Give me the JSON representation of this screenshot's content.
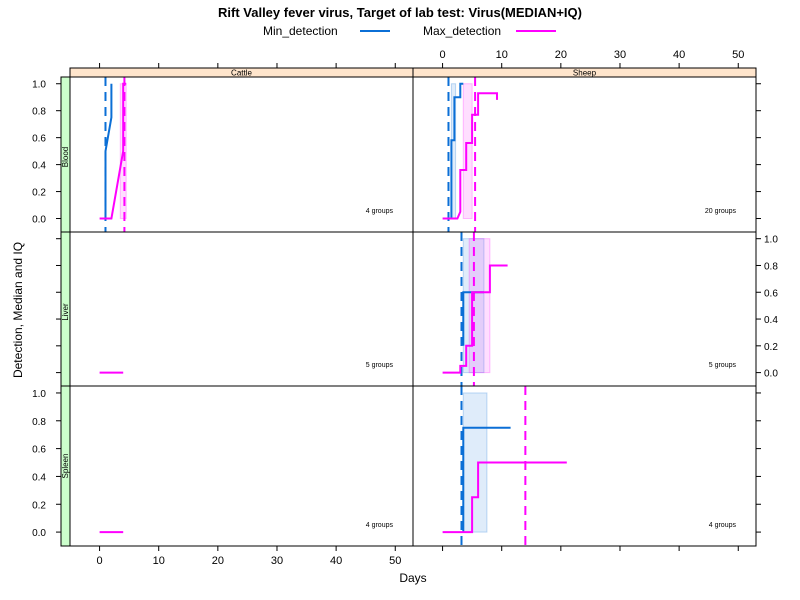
{
  "chart_data": {
    "type": "line",
    "title": "Rift Valley fever virus, Target of lab test: Virus(MEDIAN+IQ)",
    "xlabel": "Days",
    "ylabel": "Detection, Median and IQ",
    "xlim": [
      -5,
      53
    ],
    "ylim": [
      -0.1,
      1.05
    ],
    "x_ticks": [
      0,
      10,
      20,
      30,
      40,
      50
    ],
    "y_ticks": [
      0.0,
      0.2,
      0.4,
      0.6,
      0.8,
      1.0
    ],
    "y_tick_labels": [
      "0.0",
      "0.2",
      "0.4",
      "0.6",
      "0.8",
      "1.0"
    ],
    "legend_position": "top",
    "legend": [
      {
        "name": "Min_detection",
        "color": "#0b6fd6"
      },
      {
        "name": "Max_detection",
        "color": "#ff00ff"
      }
    ],
    "strip_colors": {
      "top": "#ffe5cc",
      "left": "#ccffcc"
    },
    "columns": [
      "Cattle",
      "Sheep"
    ],
    "rows": [
      "Blood",
      "Liver",
      "Spleen"
    ],
    "panels": [
      {
        "row": "Blood",
        "col": "Cattle",
        "groups_label": "4 groups",
        "min_series": {
          "x": [
            1,
            1,
            2,
            2,
            2,
            2
          ],
          "y": [
            0,
            0.5,
            0.75,
            0.75,
            1,
            1
          ]
        },
        "min_iq": null,
        "min_median_line": 1,
        "max_series": {
          "x": [
            0,
            2,
            3,
            3,
            4,
            4,
            4.5
          ],
          "y": [
            0,
            0,
            0.25,
            0.25,
            0.5,
            1,
            1
          ]
        },
        "max_iq": [
          3.5,
          4.5
        ],
        "max_median_line": 4.2
      },
      {
        "row": "Blood",
        "col": "Sheep",
        "groups_label": "20 groups",
        "min_series": {
          "x": [
            1.5,
            1.5,
            2,
            2,
            3,
            3,
            3.5
          ],
          "y": [
            0,
            0.58,
            0.58,
            0.9,
            0.9,
            1,
            1
          ]
        },
        "min_iq": [
          1.5,
          2.2
        ],
        "min_median_line": 1,
        "max_series": {
          "x": [
            0,
            2.5,
            3,
            3,
            4,
            4,
            5,
            5,
            6,
            6,
            7,
            9.2,
            9.2
          ],
          "y": [
            0,
            0,
            0.05,
            0.36,
            0.36,
            0.56,
            0.56,
            0.77,
            0.77,
            0.93,
            0.93,
            0.93,
            0.88
          ]
        },
        "max_iq": [
          3.5,
          5
        ],
        "max_median_line": 5.5
      },
      {
        "row": "Liver",
        "col": "Cattle",
        "groups_label": "5 groups",
        "min_series": null,
        "min_iq": null,
        "min_median_line": null,
        "max_series": {
          "x": [
            0,
            4
          ],
          "y": [
            0,
            0
          ]
        },
        "max_iq": null,
        "max_median_line": null
      },
      {
        "row": "Liver",
        "col": "Sheep",
        "groups_label": "5 groups",
        "min_series": {
          "x": [
            3.5,
            3.5,
            5,
            5,
            7
          ],
          "y": [
            0.2,
            0.6,
            0.6,
            0.6,
            0.6
          ]
        },
        "min_iq": [
          3.5,
          7
        ],
        "min_median_line": 3.2,
        "max_series": {
          "x": [
            0,
            3,
            3,
            4,
            4,
            5,
            5,
            8,
            8,
            11
          ],
          "y": [
            0,
            0,
            0.05,
            0.05,
            0.2,
            0.2,
            0.6,
            0.6,
            0.8,
            0.8
          ]
        },
        "max_iq": [
          4.5,
          8
        ],
        "max_median_line": 5.3
      },
      {
        "row": "Spleen",
        "col": "Cattle",
        "groups_label": "4 groups",
        "min_series": null,
        "min_iq": null,
        "min_median_line": null,
        "max_series": {
          "x": [
            0,
            4
          ],
          "y": [
            0,
            0
          ]
        },
        "max_iq": null,
        "max_median_line": null
      },
      {
        "row": "Spleen",
        "col": "Sheep",
        "groups_label": "4 groups",
        "min_series": {
          "x": [
            3.5,
            3.5,
            11.5
          ],
          "y": [
            0,
            0.75,
            0.75
          ]
        },
        "min_iq": [
          3.5,
          7.5
        ],
        "min_median_line": 3.2,
        "max_series": {
          "x": [
            0,
            3.2,
            5,
            5,
            6,
            6,
            7,
            7,
            21
          ],
          "y": [
            0,
            0,
            0,
            0.25,
            0.25,
            0.5,
            0.5,
            0.5,
            0.5
          ]
        },
        "max_iq": null,
        "max_median_line": 14
      }
    ]
  }
}
